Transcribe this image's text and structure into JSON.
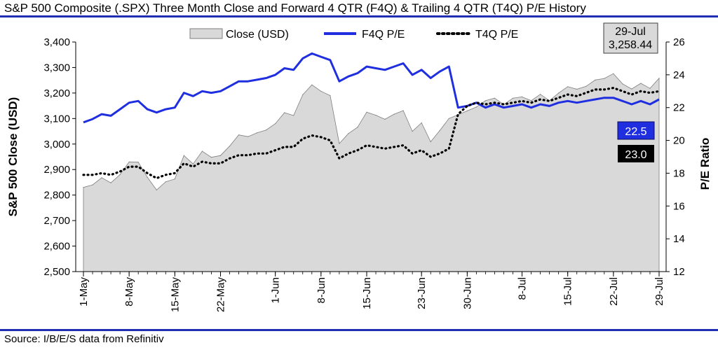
{
  "header": {
    "title": "S&P 500 Composite (.SPX) Three Month Close and Forward 4 QTR (F4Q) & Trailing 4 QTR (T4Q) P/E History"
  },
  "footer": {
    "source": "Source: I/B/E/S data from Refinitiv"
  },
  "colors": {
    "rule": "#1f2fb4",
    "close_fill": "#d9d9d9",
    "close_stroke": "#7f7f7f",
    "f4q": "#1f2fe0",
    "t4q": "#000000",
    "f4q_label_bg": "#1f2fe0",
    "t4q_label_bg": "#000000",
    "callout_bg": "#d9d9d9"
  },
  "chart_data": {
    "type": "area",
    "title": "S&P 500 Composite (.SPX) Three Month Close and Forward 4 QTR (F4Q) & Trailing 4 QTR (T4Q) P/E History",
    "xlabel": "",
    "ylabel": "S&P 500 Close (USD)",
    "y2label": "P/E Ratio",
    "ylim": [
      2500,
      3400
    ],
    "y2lim": [
      12,
      26
    ],
    "yticks": [
      2500,
      2600,
      2700,
      2800,
      2900,
      3000,
      3100,
      3200,
      3300,
      3400
    ],
    "ytick_labels": [
      "2,500",
      "2,600",
      "2,700",
      "2,800",
      "2,900",
      "3,000",
      "3,100",
      "3,200",
      "3,300",
      "3,400"
    ],
    "y2ticks": [
      12,
      14,
      16,
      18,
      20,
      22,
      24,
      26
    ],
    "x_tick_labels": [
      "1-May",
      "8-May",
      "15-May",
      "22-May",
      "1-Jun",
      "8-Jun",
      "15-Jun",
      "23-Jun",
      "30-Jun",
      "8-Jul",
      "15-Jul",
      "22-Jul",
      "29-Jul"
    ],
    "x_tick_index": [
      0,
      5,
      10,
      15,
      21,
      26,
      31,
      37,
      42,
      48,
      53,
      58,
      63
    ],
    "legend": [
      "Close (USD)",
      "F4Q P/E",
      "T4Q P/E"
    ],
    "legend_position": "top",
    "grid": false,
    "series": [
      {
        "name": "Close (USD)",
        "type": "area",
        "axis": "left",
        "values": [
          2830,
          2840,
          2868,
          2848,
          2880,
          2930,
          2929,
          2870,
          2820,
          2852,
          2863,
          2955,
          2922,
          2972,
          2948,
          2955,
          2992,
          3036,
          3029,
          3044,
          3055,
          3080,
          3123,
          3112,
          3193,
          3232,
          3207,
          3190,
          3002,
          3041,
          3066,
          3125,
          3113,
          3097,
          3117,
          3131,
          3050,
          3083,
          3009,
          3053,
          3100,
          3115,
          3130,
          3145,
          3170,
          3180,
          3155,
          3180,
          3185,
          3170,
          3195,
          3170,
          3200,
          3225,
          3215,
          3226,
          3251,
          3257,
          3276,
          3236,
          3216,
          3238,
          3218,
          3258
        ]
      },
      {
        "name": "F4Q P/E",
        "type": "line",
        "axis": "right",
        "values": [
          21.1,
          21.3,
          21.6,
          21.5,
          21.9,
          22.3,
          22.4,
          21.9,
          21.7,
          21.9,
          22.0,
          22.9,
          22.7,
          23.0,
          22.9,
          23.0,
          23.3,
          23.6,
          23.6,
          23.7,
          23.8,
          24.0,
          24.4,
          24.3,
          25.0,
          25.3,
          25.1,
          24.9,
          23.6,
          23.9,
          24.1,
          24.5,
          24.4,
          24.3,
          24.5,
          24.7,
          24.0,
          24.3,
          23.8,
          24.2,
          24.5,
          22.0,
          22.1,
          22.3,
          22.0,
          22.2,
          22.0,
          22.1,
          22.2,
          22.0,
          22.2,
          22.1,
          22.3,
          22.4,
          22.3,
          22.4,
          22.5,
          22.6,
          22.6,
          22.4,
          22.2,
          22.4,
          22.2,
          22.5
        ]
      },
      {
        "name": "T4Q P/E",
        "type": "line",
        "axis": "right",
        "values": [
          17.9,
          17.9,
          18.0,
          17.9,
          18.1,
          18.4,
          18.4,
          18.0,
          17.7,
          17.9,
          18.0,
          18.6,
          18.4,
          18.7,
          18.6,
          18.6,
          18.9,
          19.1,
          19.1,
          19.2,
          19.2,
          19.4,
          19.6,
          19.6,
          20.1,
          20.3,
          20.2,
          20.0,
          18.9,
          19.2,
          19.4,
          19.7,
          19.6,
          19.5,
          19.6,
          19.7,
          19.2,
          19.4,
          19.0,
          19.2,
          19.5,
          21.6,
          22.1,
          22.3,
          22.2,
          22.3,
          22.2,
          22.3,
          22.4,
          22.3,
          22.5,
          22.4,
          22.6,
          22.8,
          22.7,
          22.9,
          23.1,
          23.1,
          23.2,
          23.0,
          22.8,
          23.0,
          22.9,
          23.0
        ]
      }
    ],
    "annotations": {
      "callout_date": "29-Jul",
      "callout_close": "3,258.44",
      "f4q_last": "22.5",
      "t4q_last": "23.0"
    }
  }
}
